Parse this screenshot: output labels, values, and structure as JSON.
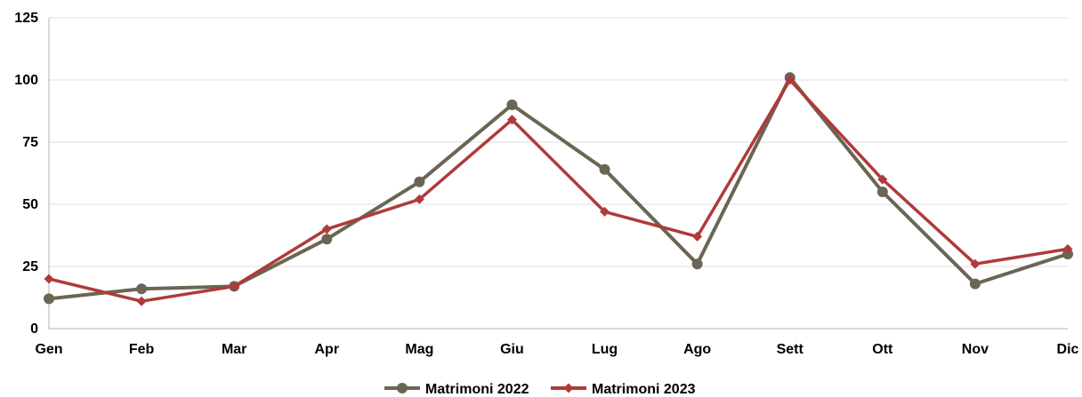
{
  "chart_data": {
    "type": "line",
    "title": "",
    "xlabel": "",
    "ylabel": "",
    "categories": [
      "Gen",
      "Feb",
      "Mar",
      "Apr",
      "Mag",
      "Giu",
      "Lug",
      "Ago",
      "Sett",
      "Ott",
      "Nov",
      "Dic"
    ],
    "ylim": [
      0,
      125
    ],
    "yticks": [
      0,
      25,
      50,
      75,
      100,
      125
    ],
    "grid": true,
    "legend_position": "bottom",
    "series": [
      {
        "name": "Matrimoni 2022",
        "color": "#6b6554",
        "marker": "circle",
        "values": [
          12,
          16,
          17,
          36,
          59,
          90,
          64,
          26,
          101,
          55,
          18,
          30
        ]
      },
      {
        "name": "Matrimoni 2023",
        "color": "#b03a3a",
        "marker": "diamond",
        "values": [
          20,
          11,
          17,
          40,
          52,
          84,
          47,
          37,
          100,
          60,
          26,
          32
        ]
      }
    ]
  }
}
